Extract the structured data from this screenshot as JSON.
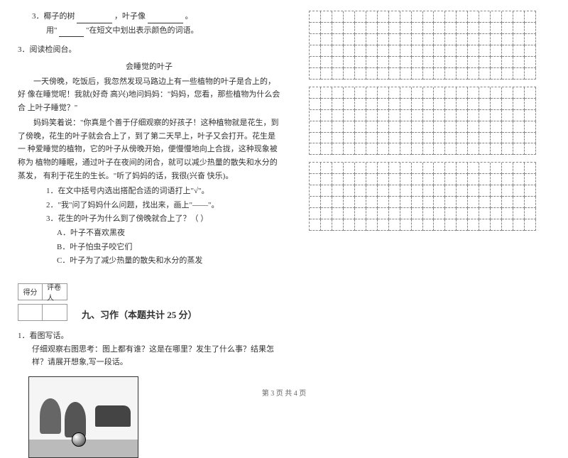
{
  "q3_line1_prefix": "3．椰子的树",
  "q3_line1_mid": "，叶子像",
  "q3_line1_end": "。",
  "q3_line2_prefix": "用\"",
  "q3_line2_suffix": "\"在短文中划出表示颜色的词语。",
  "reading_section": "3．阅读检阅台。",
  "passage_title": "会睡觉的叶子",
  "p1": "一天傍晚，吃饭后，我忽然发现马路边上有一些植物的叶子是合上的，好 像在睡觉呢！我就(好奇 高兴)地问妈妈：\"妈妈，您看，那些植物为什么会合 上叶子睡觉？\"",
  "p2": "妈妈笑着说：\"你真是个善于仔细观察的好孩子！这种植物就是花生，到 了傍晚，花生的叶子就会合上了，到了第二天早上，叶子又会打开。花生是一 种爱睡觉的植物，它的叶子从傍晚开始，便慢慢地向上合拢，这种现象被称为    植物的睡眠，通过叶子在夜间的闭合，就可以减少热量的散失和水分的蒸发，  有利于花生的生长。\"听了妈妈的话，我很(兴奋 快乐)。",
  "sub_q1": "1．在文中括号内选出搭配合适的词语打上\"√\"。",
  "sub_q2": "2．\"我\"问了妈妈什么问题，找出来，画上\"——\"。",
  "sub_q3": "3．花生的叶子为什么到了傍晚就合上了？（    ）",
  "choice_a": "A．叶子不喜欢黑夜",
  "choice_b": "B．叶子怕虫子咬它们",
  "choice_c": "C．叶子为了减少热量的散失和水分的蒸发",
  "score_label1": "得分",
  "score_label2": "评卷人",
  "section9": "九、习作（本题共计 25 分）",
  "writing_q": "1．看图写话。",
  "writing_prompt": "仔细观察右图思考：图上都有谁？这是在哪里？发生了什么事？结果怎样？请展开想象,写一段话。",
  "footer_text": "第 3 页 共 4 页",
  "grid_rows": 6,
  "grid_cols": 20,
  "grid_count": 3
}
